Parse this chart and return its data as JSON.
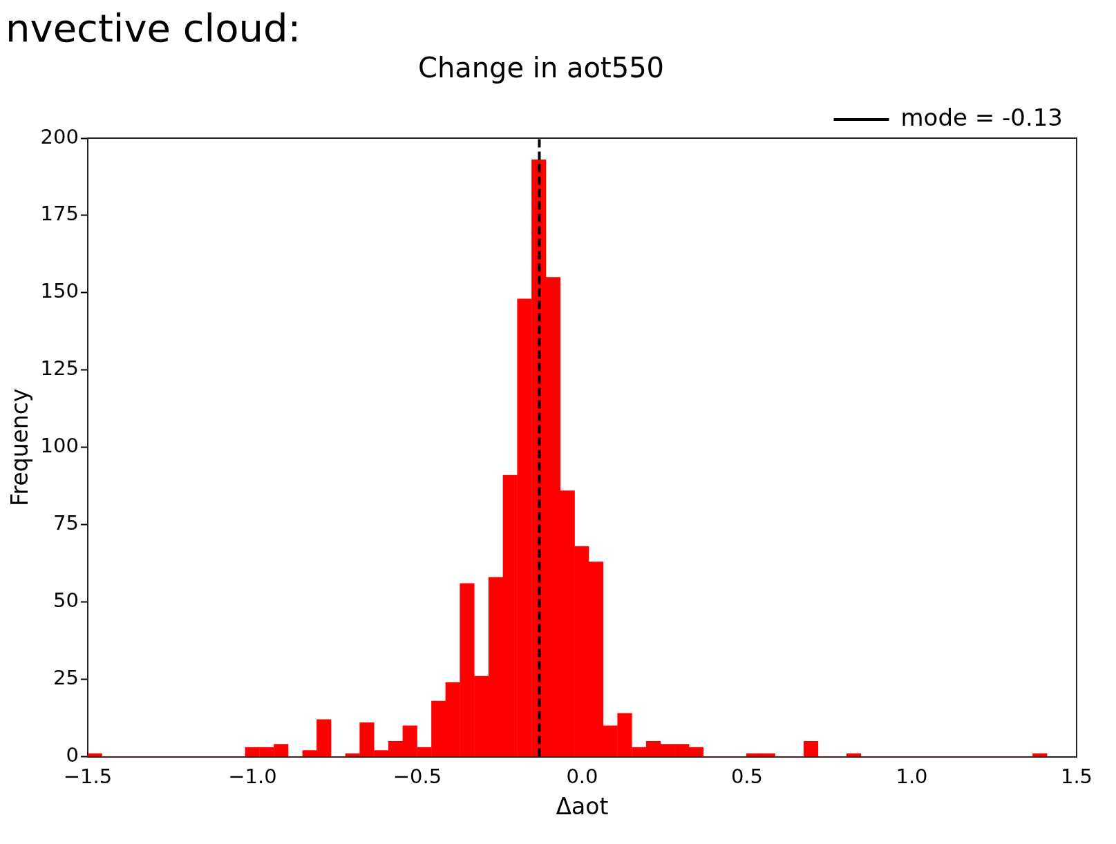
{
  "chart_data": {
    "type": "histogram",
    "title": "Change in aot550",
    "xlabel": "Δaot",
    "ylabel": "Frequency",
    "annotations": [
      "nvective cloud:"
    ],
    "bins": [
      -1.5,
      -1.457,
      -1.413,
      -1.37,
      -1.326,
      -1.283,
      -1.239,
      -1.196,
      -1.152,
      -1.109,
      -1.066,
      -1.022,
      -0.979,
      -0.935,
      -0.892,
      -0.848,
      -0.805,
      -0.762,
      -0.718,
      -0.675,
      -0.631,
      -0.588,
      -0.544,
      -0.501,
      -0.457,
      -0.414,
      -0.371,
      -0.327,
      -0.284,
      -0.24,
      -0.197,
      -0.153,
      -0.11,
      -0.066,
      -0.023,
      0.02,
      0.064,
      0.107,
      0.151,
      0.194,
      0.238,
      0.281,
      0.324,
      0.368,
      0.411,
      0.455,
      0.498,
      0.542,
      0.585,
      0.629,
      0.672,
      0.716,
      0.759,
      0.802,
      0.846,
      0.889,
      0.933,
      0.976,
      1.02,
      1.063,
      1.106,
      1.15,
      1.193,
      1.237,
      1.28,
      1.324,
      1.367,
      1.41
    ],
    "values": [
      1,
      0,
      0,
      0,
      0,
      0,
      0,
      0,
      0,
      0,
      0,
      3,
      3,
      4,
      0,
      2,
      12,
      0,
      1,
      11,
      2,
      5,
      10,
      3,
      18,
      24,
      56,
      26,
      58,
      91,
      148,
      193,
      155,
      86,
      68,
      63,
      10,
      14,
      3,
      5,
      4,
      4,
      3,
      0,
      0,
      0,
      1,
      1,
      0,
      0,
      5,
      0,
      0,
      1,
      0,
      0,
      0,
      0,
      0,
      0,
      0,
      0,
      0,
      0,
      0,
      0,
      1
    ],
    "color": "#ff0000",
    "xlim": [
      -1.5,
      1.5
    ],
    "xticks": [
      {
        "value": -1.5,
        "label": "−1.5"
      },
      {
        "value": -1.0,
        "label": "−1.0"
      },
      {
        "value": -0.5,
        "label": "−0.5"
      },
      {
        "value": 0,
        "label": "0.0"
      },
      {
        "value": 0.5,
        "label": "0.5"
      },
      {
        "value": 1.0,
        "label": "1.0"
      },
      {
        "value": 1.5,
        "label": "1.5"
      }
    ],
    "ylim": [
      0,
      200
    ],
    "yticks": [
      0,
      25,
      50,
      75,
      100,
      125,
      150,
      175,
      200
    ],
    "ref_lines": [
      {
        "axis": "x",
        "value": -0.13,
        "label": "mode = -0.13",
        "color": "#000000",
        "line_style": "dashed"
      }
    ],
    "grid": false,
    "legend": "top right"
  }
}
